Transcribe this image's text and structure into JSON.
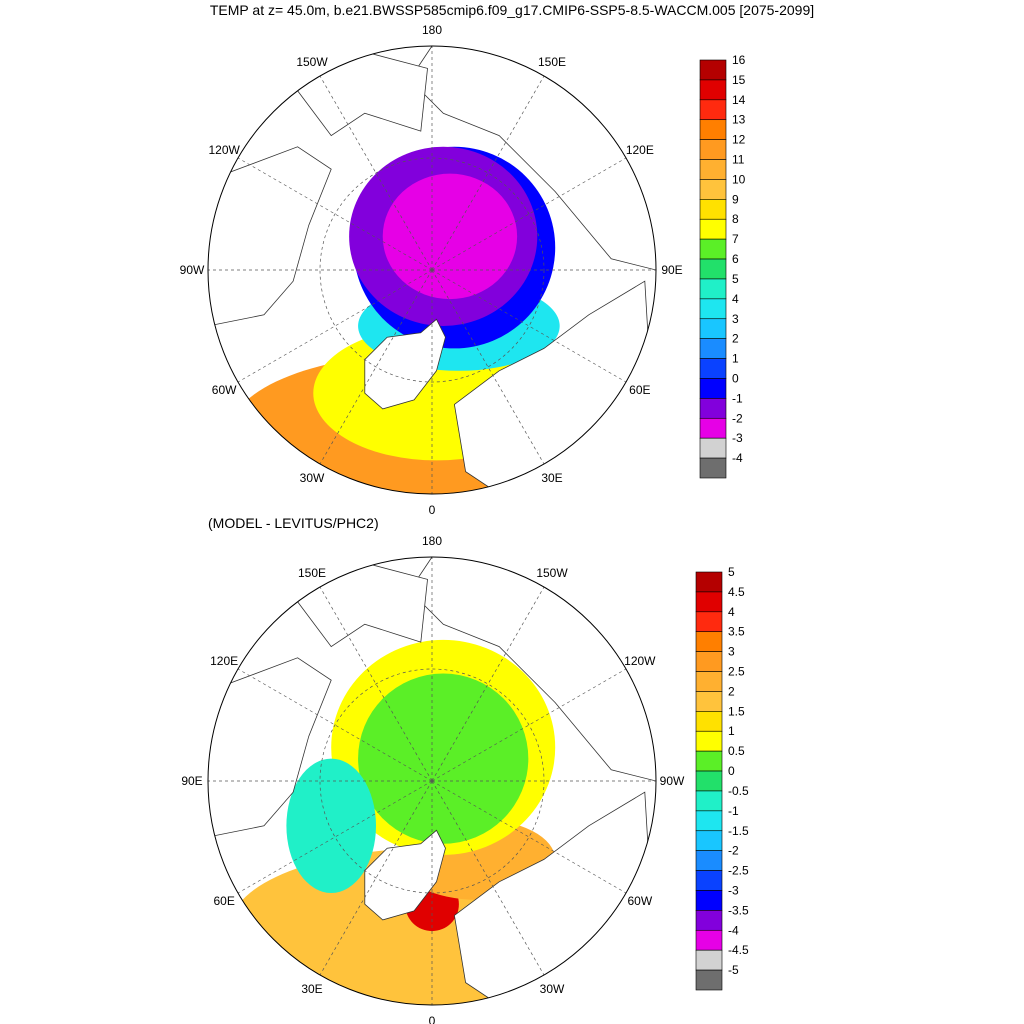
{
  "title": "TEMP at z=  45.0m, b.e21.BWSSP585cmip6.f09_g17.CMIP6-SSP5-8.5-WACCM.005 [2075-2099]",
  "chart_data": [
    {
      "type": "map",
      "projection": "north-polar-stereographic",
      "title": "TEMP at z=  45.0m, b.e21.BWSSP585cmip6.f09_g17.CMIP6-SSP5-8.5-WACCM.005 [2075-2099]",
      "longitude_labels": [
        {
          "lon": 180,
          "label": "180"
        },
        {
          "lon": 150,
          "label": "150E"
        },
        {
          "lon": 120,
          "label": "120E"
        },
        {
          "lon": 90,
          "label": "90E"
        },
        {
          "lon": 60,
          "label": "60E"
        },
        {
          "lon": 30,
          "label": "30E"
        },
        {
          "lon": 0,
          "label": "0"
        },
        {
          "lon": -30,
          "label": "30W"
        },
        {
          "lon": -60,
          "label": "60W"
        },
        {
          "lon": -90,
          "label": "90W"
        },
        {
          "lon": -120,
          "label": "120W"
        },
        {
          "lon": -150,
          "label": "150W"
        }
      ],
      "colorbar": {
        "levels": [
          "16",
          "15",
          "14",
          "13",
          "12",
          "11",
          "10",
          "9",
          "8",
          "7",
          "6",
          "5",
          "4",
          "3",
          "2",
          "1",
          "0",
          "-1",
          "-2",
          "-3",
          "-4"
        ],
        "colors": [
          "#b40000",
          "#e00000",
          "#ff2a0f",
          "#ff7f00",
          "#ff9a20",
          "#ffb030",
          "#ffc33c",
          "#ffe100",
          "#ffff00",
          "#5bef27",
          "#22e06a",
          "#20f0c8",
          "#1ee6f0",
          "#19c6ff",
          "#1a8cff",
          "#0a42ff",
          "#0000ff",
          "#8200dc",
          "#e600e6",
          "#d2d2d2",
          "#6e6e6e"
        ]
      },
      "field": {
        "arctic_basin_center": -1.5,
        "arctic_shelves": -0.5,
        "barents_sea": 2.5,
        "norwegian_sea": 8,
        "north_atlantic_south": 11
      }
    },
    {
      "type": "map",
      "projection": "north-polar-stereographic",
      "title": "(MODEL - LEVITUS/PHC2)",
      "longitude_labels": [
        {
          "lon": 180,
          "label": "180"
        },
        {
          "lon": 150,
          "label": "150W"
        },
        {
          "lon": 120,
          "label": "120W"
        },
        {
          "lon": 90,
          "label": "90W"
        },
        {
          "lon": 60,
          "label": "60W"
        },
        {
          "lon": 30,
          "label": "30W"
        },
        {
          "lon": 0,
          "label": "0"
        },
        {
          "lon": -30,
          "label": "30E"
        },
        {
          "lon": -60,
          "label": "60E"
        },
        {
          "lon": -90,
          "label": "90E"
        },
        {
          "lon": -120,
          "label": "120E"
        },
        {
          "lon": -150,
          "label": "150E"
        }
      ],
      "colorbar": {
        "levels": [
          "5",
          "4.5",
          "4",
          "3.5",
          "3",
          "2.5",
          "2",
          "1.5",
          "1",
          "0.5",
          "0",
          "-0.5",
          "-1",
          "-1.5",
          "-2",
          "-2.5",
          "-3",
          "-3.5",
          "-4",
          "-4.5",
          "-5"
        ],
        "colors": [
          "#b40000",
          "#e00000",
          "#ff2a0f",
          "#ff7f00",
          "#ff9a20",
          "#ffb030",
          "#ffc33c",
          "#ffe100",
          "#ffff00",
          "#5bef27",
          "#22e06a",
          "#20f0c8",
          "#1ee6f0",
          "#19c6ff",
          "#1a8cff",
          "#0a42ff",
          "#0000ff",
          "#8200dc",
          "#e600e6",
          "#d2d2d2",
          "#6e6e6e"
        ]
      },
      "field": {
        "arctic_basin_center": 0.7,
        "arctic_periphery": 1.2,
        "barents_kara_anomaly": 3.0,
        "norwegian_sea_max": 5.0,
        "canadian_archipelago": -0.5,
        "labrador_sea": -1.0
      }
    }
  ],
  "subtitle": "(MODEL - LEVITUS/PHC2)"
}
